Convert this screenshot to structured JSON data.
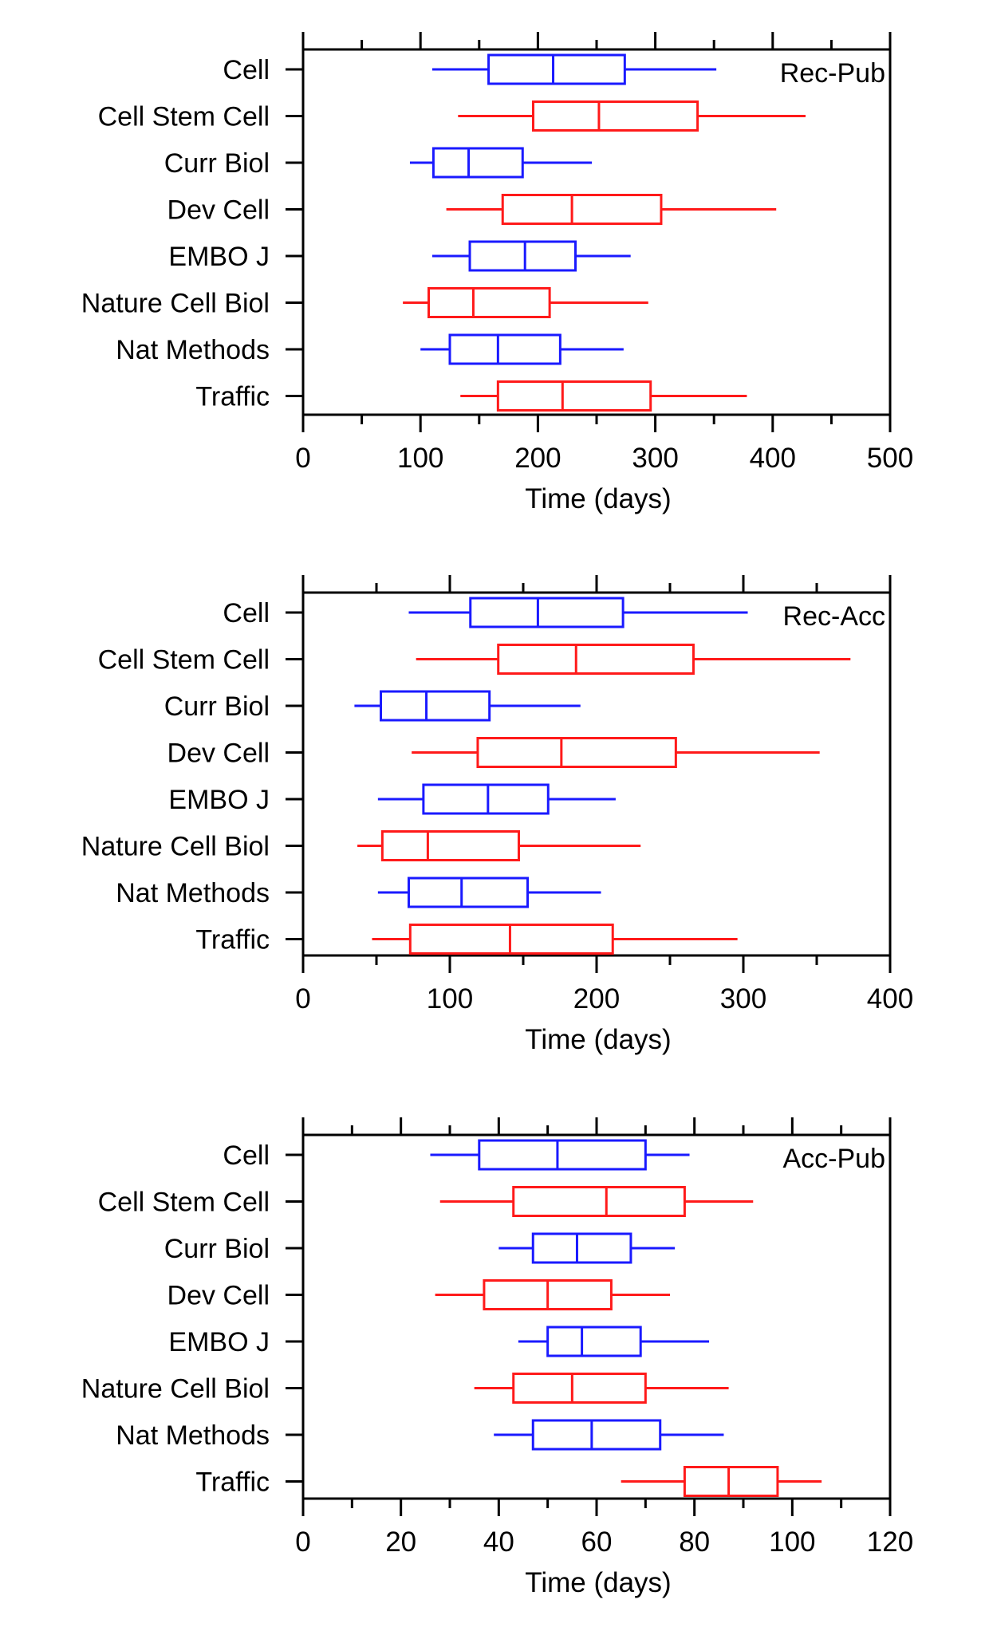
{
  "colors": {
    "blue": "#1a1aff",
    "red": "#ff1a1a",
    "axis": "#000000"
  },
  "chart_data": [
    {
      "type": "boxplot",
      "title": "Rec-Pub",
      "xlabel": "Time (days)",
      "xlim": [
        0,
        500
      ],
      "xticks": [
        0,
        100,
        200,
        300,
        400,
        500
      ],
      "xtick_labels": [
        "0",
        "100",
        "200",
        "300",
        "400",
        "500"
      ],
      "categories": [
        "Cell",
        "Cell Stem Cell",
        "Curr Biol",
        "Dev Cell",
        "EMBO J",
        "Nature Cell Biol",
        "Nat Methods",
        "Traffic"
      ],
      "series": [
        {
          "name": "Cell",
          "color": "blue",
          "min": 110,
          "q1": 158,
          "median": 213,
          "q3": 274,
          "max": 352
        },
        {
          "name": "Cell Stem Cell",
          "color": "red",
          "min": 132,
          "q1": 196,
          "median": 252,
          "q3": 336,
          "max": 428
        },
        {
          "name": "Curr Biol",
          "color": "blue",
          "min": 91,
          "q1": 111,
          "median": 141,
          "q3": 187,
          "max": 246
        },
        {
          "name": "Dev Cell",
          "color": "red",
          "min": 122,
          "q1": 170,
          "median": 229,
          "q3": 305,
          "max": 403
        },
        {
          "name": "EMBO J",
          "color": "blue",
          "min": 110,
          "q1": 142,
          "median": 189,
          "q3": 232,
          "max": 279
        },
        {
          "name": "Nature Cell Biol",
          "color": "red",
          "min": 85,
          "q1": 107,
          "median": 145,
          "q3": 210,
          "max": 294
        },
        {
          "name": "Nat Methods",
          "color": "blue",
          "min": 100,
          "q1": 125,
          "median": 166,
          "q3": 219,
          "max": 273
        },
        {
          "name": "Traffic",
          "color": "red",
          "min": 134,
          "q1": 166,
          "median": 221,
          "q3": 296,
          "max": 378
        }
      ]
    },
    {
      "type": "boxplot",
      "title": "Rec-Acc",
      "xlabel": "Time (days)",
      "xlim": [
        0,
        400
      ],
      "xticks": [
        0,
        100,
        200,
        300,
        400
      ],
      "xtick_labels": [
        "0",
        "100",
        "200",
        "300",
        "400"
      ],
      "categories": [
        "Cell",
        "Cell Stem Cell",
        "Curr Biol",
        "Dev Cell",
        "EMBO J",
        "Nature Cell Biol",
        "Nat Methods",
        "Traffic"
      ],
      "series": [
        {
          "name": "Cell",
          "color": "blue",
          "min": 72,
          "q1": 114,
          "median": 160,
          "q3": 218,
          "max": 303
        },
        {
          "name": "Cell Stem Cell",
          "color": "red",
          "min": 77,
          "q1": 133,
          "median": 186,
          "q3": 266,
          "max": 373
        },
        {
          "name": "Curr Biol",
          "color": "blue",
          "min": 35,
          "q1": 53,
          "median": 84,
          "q3": 127,
          "max": 189
        },
        {
          "name": "Dev Cell",
          "color": "red",
          "min": 74,
          "q1": 119,
          "median": 176,
          "q3": 254,
          "max": 352
        },
        {
          "name": "EMBO J",
          "color": "blue",
          "min": 51,
          "q1": 82,
          "median": 126,
          "q3": 167,
          "max": 213
        },
        {
          "name": "Nature Cell Biol",
          "color": "red",
          "min": 37,
          "q1": 54,
          "median": 85,
          "q3": 147,
          "max": 230
        },
        {
          "name": "Nat Methods",
          "color": "blue",
          "min": 51,
          "q1": 72,
          "median": 108,
          "q3": 153,
          "max": 203
        },
        {
          "name": "Traffic",
          "color": "red",
          "min": 47,
          "q1": 73,
          "median": 141,
          "q3": 211,
          "max": 296
        }
      ]
    },
    {
      "type": "boxplot",
      "title": "Acc-Pub",
      "xlabel": "Time (days)",
      "xlim": [
        0,
        120
      ],
      "xticks": [
        0,
        20,
        40,
        60,
        80,
        100,
        120
      ],
      "xtick_labels": [
        "0",
        "20",
        "40",
        "60",
        "80",
        "100",
        "120"
      ],
      "categories": [
        "Cell",
        "Cell Stem Cell",
        "Curr Biol",
        "Dev Cell",
        "EMBO J",
        "Nature Cell Biol",
        "Nat Methods",
        "Traffic"
      ],
      "series": [
        {
          "name": "Cell",
          "color": "blue",
          "min": 26,
          "q1": 36,
          "median": 52,
          "q3": 70,
          "max": 79
        },
        {
          "name": "Cell Stem Cell",
          "color": "red",
          "min": 28,
          "q1": 43,
          "median": 62,
          "q3": 78,
          "max": 92
        },
        {
          "name": "Curr Biol",
          "color": "blue",
          "min": 40,
          "q1": 47,
          "median": 56,
          "q3": 67,
          "max": 76
        },
        {
          "name": "Dev Cell",
          "color": "red",
          "min": 27,
          "q1": 37,
          "median": 50,
          "q3": 63,
          "max": 75
        },
        {
          "name": "EMBO J",
          "color": "blue",
          "min": 44,
          "q1": 50,
          "median": 57,
          "q3": 69,
          "max": 83
        },
        {
          "name": "Nature Cell Biol",
          "color": "red",
          "min": 35,
          "q1": 43,
          "median": 55,
          "q3": 70,
          "max": 87
        },
        {
          "name": "Nat Methods",
          "color": "blue",
          "min": 39,
          "q1": 47,
          "median": 59,
          "q3": 73,
          "max": 86
        },
        {
          "name": "Traffic",
          "color": "red",
          "min": 65,
          "q1": 78,
          "median": 87,
          "q3": 97,
          "max": 106
        }
      ]
    }
  ]
}
